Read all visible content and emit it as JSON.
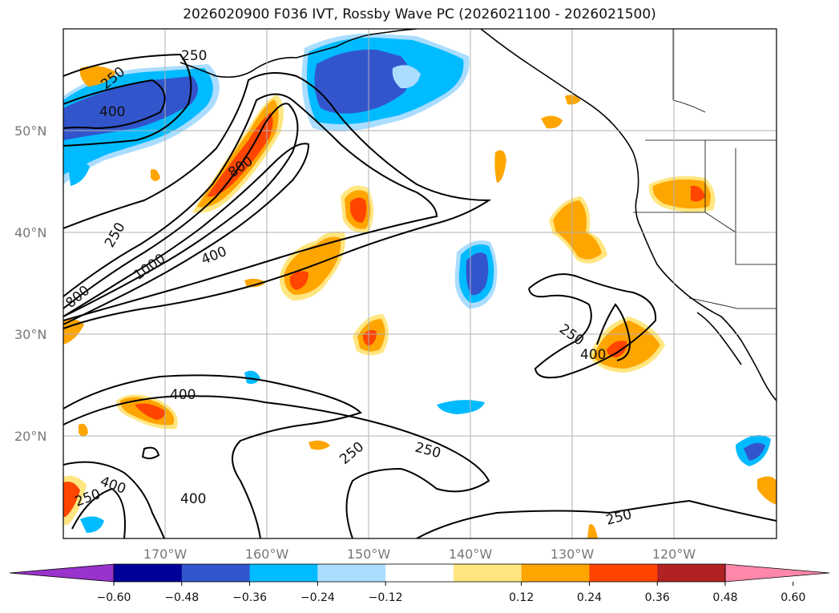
{
  "title": "2026020900 F036 IVT, Rossby Wave PC (2026021100 - 2026021500)",
  "map": {
    "projection": "PlateCarree",
    "lon_range": [
      -180,
      -110
    ],
    "lat_range": [
      10,
      60
    ],
    "grid": true,
    "lat_ticks": [
      {
        "value": 50,
        "label": "50°N"
      },
      {
        "value": 40,
        "label": "40°N"
      },
      {
        "value": 30,
        "label": "30°N"
      },
      {
        "value": 20,
        "label": "20°N"
      }
    ],
    "lon_ticks": [
      {
        "value": -170,
        "label": "170°W"
      },
      {
        "value": -160,
        "label": "160°W"
      },
      {
        "value": -150,
        "label": "150°W"
      },
      {
        "value": -140,
        "label": "140°W"
      },
      {
        "value": -130,
        "label": "130°W"
      },
      {
        "value": -120,
        "label": "120°W"
      }
    ],
    "ivt_contour_labels": [
      "250",
      "250",
      "400",
      "800",
      "250",
      "1000",
      "800",
      "400",
      "400",
      "250",
      "400",
      "250",
      "250",
      "400",
      "250",
      "400",
      "250"
    ]
  },
  "colorbar": {
    "extend": "both",
    "ticks": [
      "−0.60",
      "−0.48",
      "−0.36",
      "−0.24",
      "−0.12",
      "0.12",
      "0.24",
      "0.36",
      "0.48",
      "0.60"
    ],
    "colors": {
      "under": "#9933cc",
      "bins": [
        "#000099",
        "#3355cc",
        "#00bbff",
        "#aaddff",
        "#ffffff",
        "#ffe680",
        "#ffa500",
        "#ff4500",
        "#b22222"
      ],
      "over": "#ff88aa"
    }
  },
  "colors": {
    "neg_deep": "#3355cc",
    "neg_mid": "#00bbff",
    "neg_light": "#aaddff",
    "pos_light": "#ffe680",
    "pos_mid": "#ffa500",
    "pos_strong": "#ff4500",
    "grid": "#b0b0b0",
    "contour": "#000000"
  }
}
